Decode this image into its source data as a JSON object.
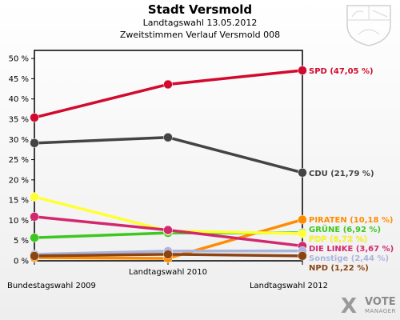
{
  "header": {
    "title": "Stadt Versmold",
    "subtitle": "Landtagswahl 13.05.2012",
    "subtitle2": "Zweitstimmen Verlauf Versmold 008"
  },
  "logo": {
    "mark": "X",
    "word1": "VOTE",
    "word2": "MANAGER"
  },
  "crest_icon": "nrw-coat-of-arms-icon",
  "chart_data": {
    "type": "line",
    "x": [
      "Bundestagswahl 2009",
      "Landtagswahl 2010",
      "Landtagswahl 2012"
    ],
    "ylim": [
      0,
      52
    ],
    "yticks": [
      0,
      5,
      10,
      15,
      20,
      25,
      30,
      35,
      40,
      45,
      50
    ],
    "ytick_labels": [
      "0 %",
      "5 %",
      "10 %",
      "15 %",
      "20 %",
      "25 %",
      "30 %",
      "35 %",
      "40 %",
      "45 %",
      "50 %"
    ],
    "grid": false,
    "series": [
      {
        "name": "SPD",
        "label": "SPD (47,05 %)",
        "color": "#d20a2e",
        "values": [
          35.4,
          43.6,
          47.05
        ]
      },
      {
        "name": "CDU",
        "label": "CDU (21,79 %)",
        "color": "#444444",
        "values": [
          29.1,
          30.5,
          21.79
        ]
      },
      {
        "name": "PIRATEN",
        "label": "PIRATEN (10,18 %)",
        "color": "#ff8c00",
        "values": [
          0.8,
          0.6,
          10.18
        ]
      },
      {
        "name": "GRÜNE",
        "label": "GRÜNE (6,92 %)",
        "color": "#3cc81e",
        "values": [
          5.7,
          6.9,
          6.92
        ]
      },
      {
        "name": "FDP",
        "label": "FDP (6,72 %)",
        "color": "#ffff33",
        "values": [
          15.8,
          7.4,
          6.72
        ]
      },
      {
        "name": "DIE LINKE",
        "label": "DIE LINKE (3,67 %)",
        "color": "#d2286e",
        "values": [
          10.9,
          7.6,
          3.67
        ]
      },
      {
        "name": "Sonstige",
        "label": "Sonstige (2,44 %)",
        "color": "#aab4dc",
        "values": [
          1.6,
          2.4,
          2.44
        ]
      },
      {
        "name": "NPD",
        "label": "NPD (1,22 %)",
        "color": "#8b4513",
        "values": [
          1.2,
          1.6,
          1.22
        ]
      }
    ]
  }
}
